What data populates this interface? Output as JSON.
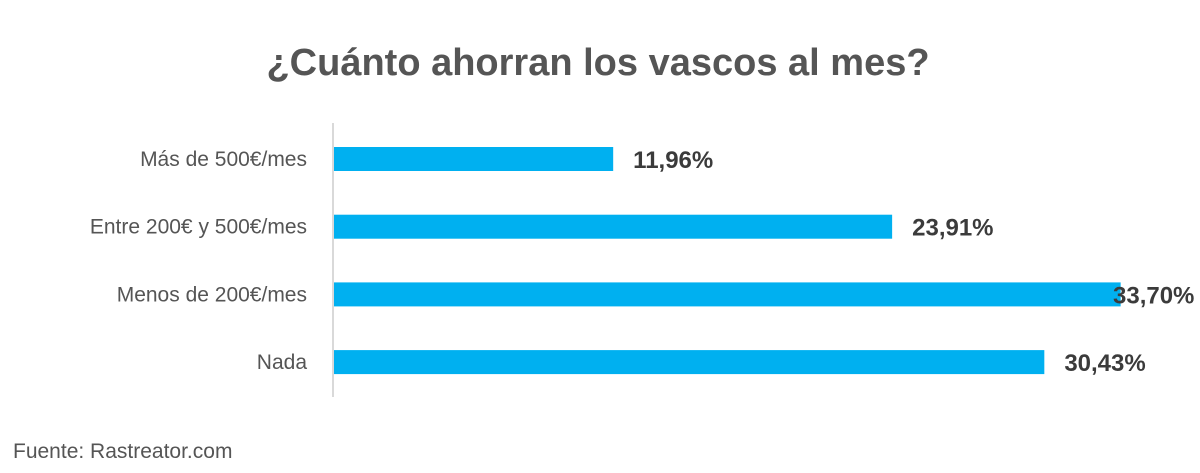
{
  "chart_data": {
    "type": "bar",
    "orientation": "horizontal",
    "title": "¿Cuánto ahorran los vascos al mes?",
    "categories": [
      "Más de 500€/mes",
      "Entre 200€ y 500€/mes",
      "Menos de 200€/mes",
      "Nada"
    ],
    "values": [
      11.96,
      23.91,
      33.7,
      30.43
    ],
    "value_labels": [
      "11,96%",
      "23,91%",
      "33,70%",
      "30,43%"
    ],
    "xlim": [
      0,
      35
    ],
    "unit": "%",
    "grid": false,
    "legend": "none",
    "bar_color": "#00b0f0"
  },
  "source": "Fuente: Rastreator.com"
}
